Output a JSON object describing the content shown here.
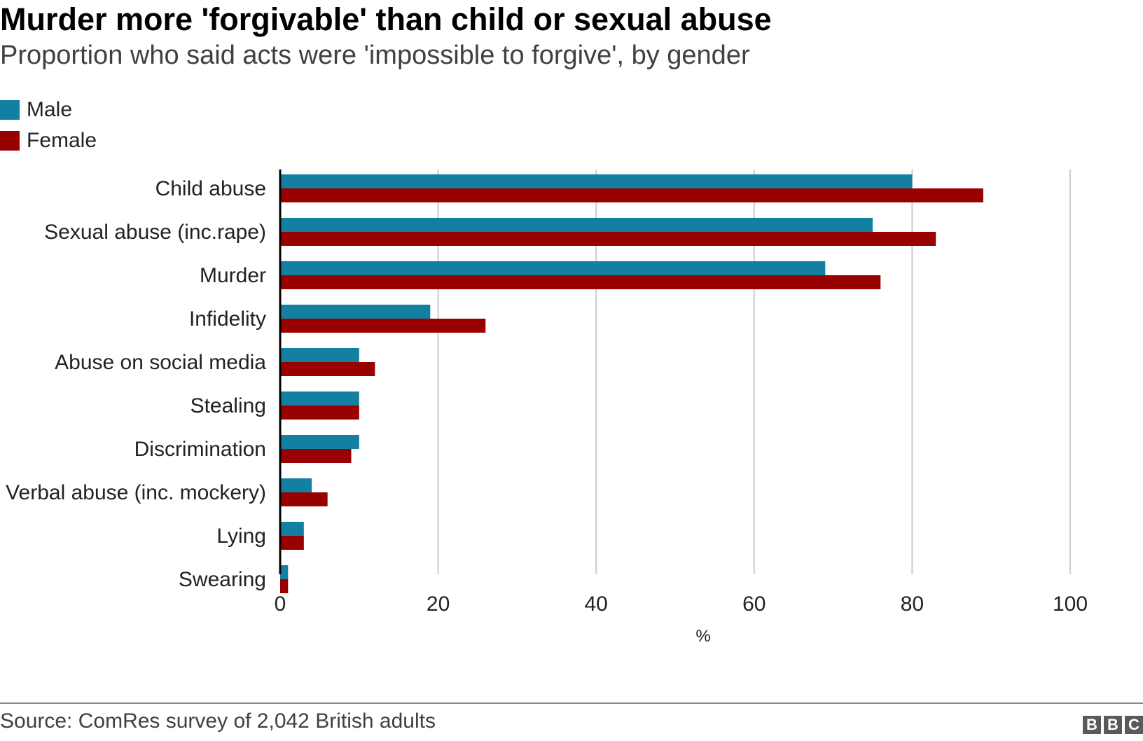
{
  "chart_data": {
    "type": "bar",
    "orientation": "horizontal",
    "title": "Murder more 'forgivable' than child or sexual abuse",
    "subtitle": "Proportion who said acts were 'impossible to forgive', by gender",
    "categories": [
      "Child abuse",
      "Sexual abuse (inc.rape)",
      "Murder",
      "Infidelity",
      "Abuse on social media",
      "Stealing",
      "Discrimination",
      "Verbal abuse (inc. mockery)",
      "Lying",
      "Swearing"
    ],
    "series": [
      {
        "name": "Male",
        "color": "#1380A1",
        "values": [
          80,
          75,
          69,
          19,
          10,
          10,
          10,
          4,
          3,
          1
        ]
      },
      {
        "name": "Female",
        "color": "#990000",
        "values": [
          89,
          83,
          76,
          26,
          12,
          10,
          9,
          6,
          3,
          1
        ]
      }
    ],
    "xlabel": "%",
    "xlim": [
      0,
      100
    ],
    "xticks": [
      "0",
      "20",
      "40",
      "60",
      "80",
      "100"
    ],
    "grid": true,
    "legend_position": "top-left"
  },
  "footer": {
    "source": "Source: ComRes survey of 2,042 British adults",
    "logo": [
      "B",
      "B",
      "C"
    ]
  }
}
